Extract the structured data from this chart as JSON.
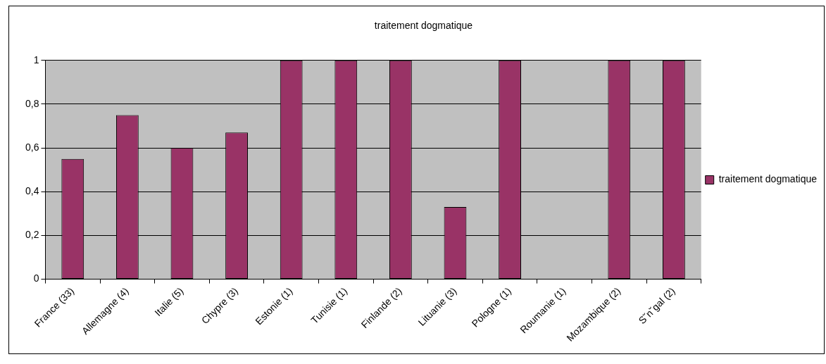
{
  "chart_data": {
    "type": "bar",
    "title": "traitement dogmatique",
    "categories": [
      "France (33)",
      "Allemagne (4)",
      "Italie (5)",
      "Chypre (3)",
      "Estonie (1)",
      "Tunisie (1)",
      "Finlande (2)",
      "Lituanie (3)",
      "Pologne (1)",
      "Roumanie (1)",
      "Mozambique (2)",
      "S˘n˘gal (2)"
    ],
    "series": [
      {
        "name": "traitement dogmatique",
        "color": "#993366",
        "values": [
          0.55,
          0.75,
          0.6,
          0.67,
          1,
          1,
          1,
          0.33,
          1,
          0,
          1,
          1
        ]
      }
    ],
    "ylim": [
      0,
      1
    ],
    "yticks": [
      0,
      {
        "value": 0.2,
        "label": "0,2"
      },
      {
        "value": 0.4,
        "label": "0,4"
      },
      {
        "value": 0.6,
        "label": "0,6"
      },
      {
        "value": 0.8,
        "label": "0,8"
      },
      1
    ],
    "grid": "y",
    "legend": "right"
  }
}
